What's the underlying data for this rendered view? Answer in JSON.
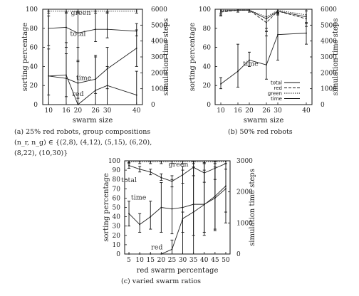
{
  "chart_data": [
    {
      "type": "line",
      "caption_lines": [
        "(a) 25% red robots, group compositions",
        "(n_r, n_g) ∈ {(2,8), (4,12), (5,15), (6,20),",
        "(8,22), (10,30)}"
      ],
      "xlabel": "swarm size",
      "ylabel": "sorting percentage",
      "y2label": "simulation time steps",
      "x": [
        10,
        16,
        20,
        26,
        30,
        40
      ],
      "xlim": [
        8,
        42
      ],
      "ylim": [
        0,
        100
      ],
      "y2lim": [
        0,
        6000
      ],
      "x_ticks": [
        "10",
        "16",
        "20",
        "26",
        "30",
        "40"
      ],
      "y_ticks": [
        "0",
        "20",
        "40",
        "60",
        "80",
        "100"
      ],
      "y2_ticks": [
        "0",
        "1000",
        "2000",
        "3000",
        "4000",
        "5000",
        "6000"
      ],
      "series": [
        {
          "name": "total",
          "values": [
            80,
            81,
            75,
            79,
            79,
            77
          ],
          "err_lo": [
            62,
            60,
            45,
            66,
            70,
            72
          ],
          "err_hi": [
            93,
            97,
            97,
            98,
            97,
            85
          ],
          "label_at": [
            20,
            72
          ],
          "style": "solid"
        },
        {
          "name": "red",
          "values": [
            30,
            31,
            0,
            15,
            20,
            10
          ],
          "err_lo": [
            0,
            0,
            0,
            0,
            0,
            0
          ],
          "err_hi": [
            98,
            65,
            60,
            50,
            40,
            35
          ],
          "label_at": [
            20,
            9
          ],
          "style": "solid"
        },
        {
          "name": "green",
          "values": [
            98,
            98,
            98,
            98,
            98,
            98
          ],
          "err_lo": [
            96,
            96,
            96,
            96,
            96,
            96
          ],
          "err_hi": [
            100,
            100,
            100,
            100,
            100,
            100
          ],
          "label_at": [
            21,
            94
          ],
          "style": "dotted"
        },
        {
          "name": "time",
          "values": [
            1800,
            1650,
            1350,
            1600,
            2250,
            3550
          ],
          "axis": "y2",
          "err_lo": [
            600,
            500,
            400,
            700,
            1000,
            2400
          ],
          "err_hi": [
            3500,
            3200,
            2800,
            3100,
            3600,
            4700
          ],
          "label_at": [
            22,
            1550
          ],
          "style": "solid"
        }
      ]
    },
    {
      "type": "line",
      "caption_lines": [
        "(b) 50% red robots"
      ],
      "xlabel": "swarm size",
      "ylabel": "sorting percentage",
      "y2label": "simulation time steps",
      "x": [
        10,
        16,
        20,
        26,
        30,
        40
      ],
      "xlim": [
        8,
        42
      ],
      "ylim": [
        0,
        100
      ],
      "y2lim": [
        0,
        6000
      ],
      "x_ticks": [
        "10",
        "16",
        "20",
        "26",
        "30",
        "40"
      ],
      "y_ticks": [
        "0",
        "20",
        "40",
        "60",
        "80",
        "100"
      ],
      "y2_ticks": [
        "0",
        "1000",
        "2000",
        "3000",
        "4000",
        "5000",
        "6000"
      ],
      "legend": {
        "placement": "bottom-right",
        "entries": [
          "total",
          "red",
          "green",
          "time"
        ]
      },
      "series": [
        {
          "name": "total",
          "values": [
            98,
            99,
            99,
            90,
            98,
            92
          ],
          "err_lo": [
            94,
            97,
            97,
            77,
            95,
            85
          ],
          "err_hi": [
            100,
            100,
            100,
            100,
            100,
            100
          ],
          "style": "solid"
        },
        {
          "name": "red",
          "values": [
            97,
            99,
            99,
            86,
            98,
            90
          ],
          "err_lo": [
            93,
            97,
            97,
            72,
            94,
            82
          ],
          "err_hi": [
            100,
            100,
            100,
            100,
            100,
            100
          ],
          "style": "dashed"
        },
        {
          "name": "green",
          "values": [
            99,
            99,
            99,
            92,
            99,
            94
          ],
          "err_lo": [
            96,
            97,
            97,
            80,
            96,
            86
          ],
          "err_hi": [
            100,
            100,
            100,
            100,
            100,
            100
          ],
          "style": "dotted"
        },
        {
          "name": "time",
          "values": [
            1300,
            2100,
            2800,
            2500,
            4400,
            4500
          ],
          "axis": "y2",
          "err_lo": [
            1000,
            1100,
            2400,
            1600,
            2800,
            3800
          ],
          "err_hi": [
            1700,
            3800,
            3300,
            4600,
            5800,
            5900
          ],
          "label_at": [
            20.5,
            2450
          ],
          "style": "solid"
        }
      ]
    },
    {
      "type": "line",
      "caption_lines": [
        "(c) varied swarm ratios"
      ],
      "xlabel": "red swarm percentage",
      "ylabel": "sorting percentage",
      "y2label": "simulation time steps",
      "x": [
        5,
        10,
        15,
        20,
        25,
        30,
        35,
        40,
        45,
        50
      ],
      "xlim": [
        3,
        52
      ],
      "ylim": [
        0,
        100
      ],
      "y2lim": [
        0,
        3000
      ],
      "x_ticks": [
        "5",
        "10",
        "15",
        "20",
        "25",
        "30",
        "35",
        "40",
        "45",
        "50"
      ],
      "y_ticks": [
        "0",
        "10",
        "20",
        "30",
        "40",
        "50",
        "60",
        "70",
        "80",
        "90",
        "100"
      ],
      "y2_ticks": [
        "0",
        "1000",
        "2000",
        "3000"
      ],
      "series": [
        {
          "name": "total",
          "values": [
            95,
            91,
            88,
            82,
            78,
            85,
            93,
            87,
            92,
            97
          ],
          "err_lo": [
            92,
            88,
            85,
            79,
            72,
            76,
            84,
            77,
            80,
            91
          ],
          "err_hi": [
            98,
            94,
            91,
            86,
            84,
            94,
            99,
            97,
            99,
            100
          ],
          "label_at": [
            5,
            77
          ],
          "style": "solid"
        },
        {
          "name": "red",
          "values": [
            0,
            0,
            0,
            0,
            5,
            38,
            45,
            53,
            62,
            73
          ],
          "err_lo": [
            0,
            0,
            0,
            0,
            0,
            0,
            0,
            20,
            25,
            45
          ],
          "err_hi": [
            0,
            0,
            0,
            0,
            15,
            45,
            100,
            98,
            97,
            100
          ],
          "label_at": [
            18,
            5
          ],
          "style": "solid"
        },
        {
          "name": "green",
          "values": [
            99,
            99,
            99,
            99,
            99,
            99,
            99,
            99,
            99,
            99
          ],
          "err_lo": [
            97,
            97,
            97,
            97,
            97,
            97,
            97,
            97,
            97,
            97
          ],
          "err_hi": [
            100,
            100,
            100,
            100,
            100,
            100,
            100,
            100,
            100,
            100
          ],
          "label_at": [
            28,
            94
          ],
          "style": "dotted"
        },
        {
          "name": "time",
          "values": [
            1300,
            950,
            1200,
            1500,
            1450,
            1500,
            1600,
            1600,
            1800,
            2100
          ],
          "axis": "y2",
          "err_lo": [
            900,
            700,
            800,
            700,
            650,
            700,
            600,
            700,
            800,
            1000
          ],
          "err_hi": [
            1700,
            1300,
            1700,
            2300,
            2400,
            2700,
            2800,
            2700,
            2800,
            3000
          ],
          "label_at": [
            9.5,
            1750
          ],
          "style": "solid"
        }
      ]
    }
  ]
}
